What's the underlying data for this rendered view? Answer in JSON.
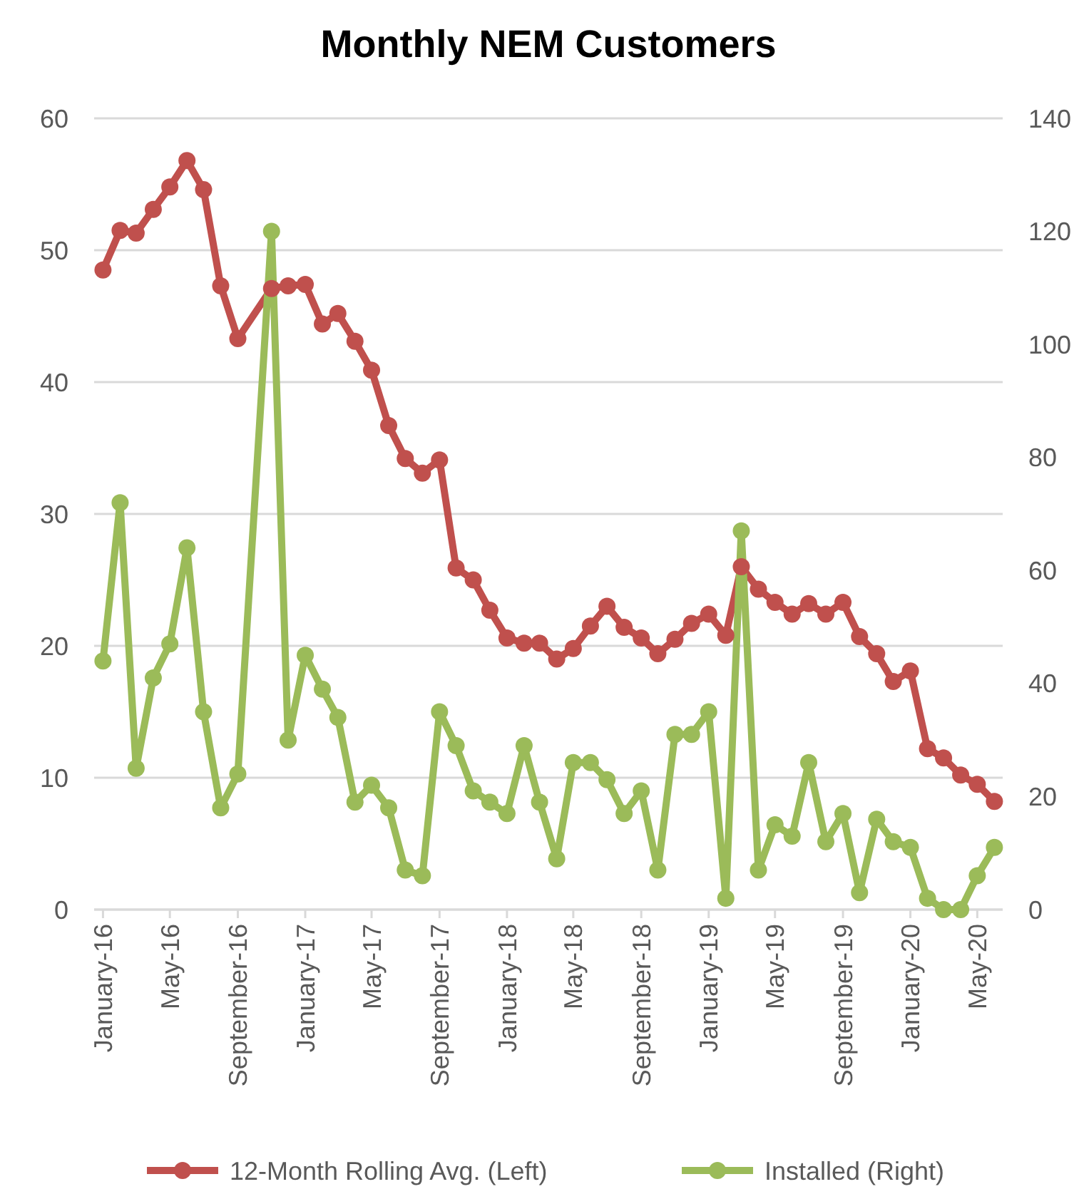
{
  "chart_data": {
    "type": "line",
    "title": "Monthly NEM Customers",
    "x": [
      "2016-01",
      "2016-02",
      "2016-03",
      "2016-04",
      "2016-05",
      "2016-06",
      "2016-07",
      "2016-08",
      "2016-09",
      "2016-11",
      "2016-12",
      "2017-01",
      "2017-02",
      "2017-03",
      "2017-04",
      "2017-05",
      "2017-06",
      "2017-07",
      "2017-08",
      "2017-09",
      "2017-10",
      "2017-11",
      "2017-12",
      "2018-01",
      "2018-02",
      "2018-03",
      "2018-04",
      "2018-05",
      "2018-06",
      "2018-07",
      "2018-08",
      "2018-09",
      "2018-10",
      "2018-11",
      "2018-12",
      "2019-01",
      "2019-02",
      "2019-03",
      "2019-04",
      "2019-05",
      "2019-06",
      "2019-07",
      "2019-08",
      "2019-09",
      "2019-10",
      "2019-11",
      "2019-12",
      "2020-01",
      "2020-02",
      "2020-03",
      "2020-04",
      "2020-05",
      "2020-06"
    ],
    "xlim": [
      "2015-12-16",
      "2020-06-16"
    ],
    "xticks": [
      {
        "value": "2016-01",
        "label": "January-16"
      },
      {
        "value": "2016-05",
        "label": "May-16"
      },
      {
        "value": "2016-09",
        "label": "September-16"
      },
      {
        "value": "2017-01",
        "label": "January-17"
      },
      {
        "value": "2017-05",
        "label": "May-17"
      },
      {
        "value": "2017-09",
        "label": "September-17"
      },
      {
        "value": "2018-01",
        "label": "January-18"
      },
      {
        "value": "2018-05",
        "label": "May-18"
      },
      {
        "value": "2018-09",
        "label": "September-18"
      },
      {
        "value": "2019-01",
        "label": "January-19"
      },
      {
        "value": "2019-05",
        "label": "May-19"
      },
      {
        "value": "2019-09",
        "label": "September-19"
      },
      {
        "value": "2020-01",
        "label": "January-20"
      },
      {
        "value": "2020-05",
        "label": "May-20"
      }
    ],
    "ylim": [
      0,
      60
    ],
    "yticks": [
      0,
      10,
      20,
      30,
      40,
      50,
      60
    ],
    "y2lim": [
      0,
      140
    ],
    "y2ticks": [
      0,
      20,
      40,
      60,
      80,
      100,
      120,
      140
    ],
    "grid": "y",
    "legend": "bottom",
    "marker": "circle",
    "line_style": "solid",
    "series": [
      {
        "name": "12-Month Rolling Avg. (Left)",
        "color": "#c0504d",
        "values": [
          48.5,
          51.5,
          51.3,
          53.1,
          54.8,
          56.8,
          54.6,
          47.3,
          43.3,
          47.1,
          47.3,
          47.4,
          44.4,
          45.2,
          43.1,
          40.9,
          36.7,
          34.2,
          33.1,
          34.1,
          25.9,
          25.0,
          22.7,
          20.6,
          20.2,
          20.2,
          19.0,
          19.8,
          21.5,
          23.0,
          21.4,
          20.6,
          19.4,
          20.5,
          21.7,
          22.4,
          20.8,
          26.0,
          24.3,
          23.3,
          22.4,
          23.2,
          22.4,
          23.3,
          20.7,
          19.4,
          17.3,
          18.1,
          12.2,
          11.5,
          10.2,
          9.5,
          8.2
        ]
      },
      {
        "name": "Installed (Right)",
        "color": "#9bbb59",
        "axis": "y2",
        "values": [
          44,
          72,
          25,
          41,
          47,
          64,
          35,
          18,
          24,
          120,
          30,
          45,
          39,
          34,
          19,
          22,
          18,
          7,
          6,
          35,
          29,
          21,
          19,
          17,
          29,
          19,
          9,
          26,
          26,
          23,
          17,
          21,
          7,
          31,
          31,
          35,
          2,
          67,
          7,
          15,
          13,
          26,
          12,
          17,
          3,
          16,
          12,
          11,
          2,
          0,
          0,
          6,
          11
        ]
      }
    ]
  }
}
